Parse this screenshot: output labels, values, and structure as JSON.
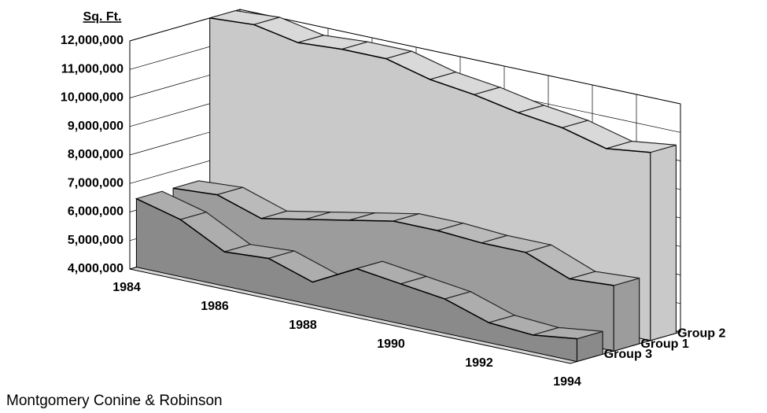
{
  "chart_data": {
    "type": "area3d",
    "y_label": "Sq. Ft.",
    "footer": "Montgomery Conine & Robinson",
    "categories": [
      "1984",
      null,
      "1986",
      null,
      "1988",
      null,
      "1990",
      null,
      "1992",
      null,
      "1994"
    ],
    "series": [
      {
        "name": "Group 2",
        "color": "#c9c9c9",
        "values": [
          12000000,
          12100000,
          11800000,
          11900000,
          11900000,
          11500000,
          11300000,
          11000000,
          10800000,
          10400000,
          10600000
        ]
      },
      {
        "name": "Group 1",
        "color": "#9c9c9c",
        "values": [
          6400000,
          6500000,
          6000000,
          6300000,
          6600000,
          6900000,
          6900000,
          6800000,
          6800000,
          6200000,
          6300000
        ]
      },
      {
        "name": "Group 3",
        "color": "#8a8a8a",
        "values": [
          6400000,
          6000000,
          5200000,
          5300000,
          4800000,
          5600000,
          5400000,
          5200000,
          4700000,
          4600000,
          4800000
        ]
      }
    ],
    "ylim": [
      4000000,
      12000000
    ],
    "yticks": [
      {
        "value": 4000000,
        "label": "4,000,000"
      },
      {
        "value": 5000000,
        "label": "5,000,000"
      },
      {
        "value": 6000000,
        "label": "6,000,000"
      },
      {
        "value": 7000000,
        "label": "7,000,000"
      },
      {
        "value": 8000000,
        "label": "8,000,000"
      },
      {
        "value": 9000000,
        "label": "9,000,000"
      },
      {
        "value": 10000000,
        "label": "10,000,000"
      },
      {
        "value": 11000000,
        "label": "11,000,000"
      },
      {
        "value": 12000000,
        "label": "12,000,000"
      }
    ],
    "grid": true
  }
}
